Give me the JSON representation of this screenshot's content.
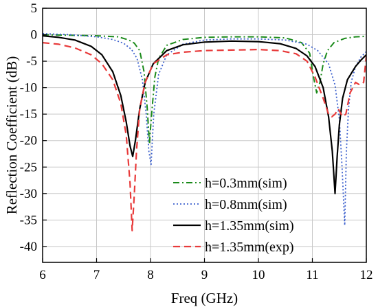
{
  "chart_data": {
    "type": "line",
    "title": "",
    "xlabel": "Freq (GHz)",
    "ylabel": "Reflection Coefficient (dB)",
    "xlim": [
      6,
      12
    ],
    "ylim": [
      -43,
      5
    ],
    "xticks": [
      6,
      7,
      8,
      9,
      10,
      11,
      12
    ],
    "yticks": [
      5,
      0,
      -5,
      -10,
      -15,
      -20,
      -25,
      -30,
      -35,
      -40
    ],
    "grid": true,
    "legend_position": "bottom-right",
    "series": [
      {
        "name": "h=0.3mm(sim)",
        "color": "#1a8a1a",
        "dash": "dashdot",
        "x": [
          6.0,
          6.5,
          7.0,
          7.4,
          7.6,
          7.7,
          7.8,
          7.88,
          7.94,
          7.98,
          8.02,
          8.08,
          8.15,
          8.3,
          8.6,
          9.0,
          9.5,
          10.0,
          10.5,
          10.8,
          10.95,
          11.02,
          11.08,
          11.14,
          11.2,
          11.28,
          11.4,
          11.6,
          11.8,
          12.0
        ],
        "y": [
          0.0,
          -0.1,
          -0.2,
          -0.4,
          -1.0,
          -1.6,
          -3.0,
          -7.0,
          -14.0,
          -20.5,
          -15.0,
          -8.0,
          -4.5,
          -2.0,
          -0.9,
          -0.5,
          -0.4,
          -0.4,
          -0.6,
          -1.5,
          -3.5,
          -8.0,
          -11.0,
          -9.0,
          -5.5,
          -3.0,
          -1.5,
          -0.7,
          -0.4,
          -0.3
        ]
      },
      {
        "name": "h=0.8mm(sim)",
        "color": "#3a5fcd",
        "dash": "dot",
        "x": [
          6.0,
          6.5,
          7.0,
          7.3,
          7.5,
          7.65,
          7.75,
          7.85,
          7.92,
          7.97,
          8.01,
          8.06,
          8.15,
          8.3,
          8.6,
          9.0,
          9.5,
          10.0,
          10.5,
          10.9,
          11.1,
          11.3,
          11.42,
          11.5,
          11.55,
          11.6,
          11.63,
          11.67,
          11.72,
          11.8,
          11.9,
          12.0
        ],
        "y": [
          0.2,
          0.0,
          -0.4,
          -0.9,
          -1.6,
          -2.8,
          -4.5,
          -8.5,
          -15.0,
          -22.0,
          -24.5,
          -15.0,
          -7.5,
          -3.8,
          -1.8,
          -1.0,
          -0.8,
          -0.8,
          -1.0,
          -1.8,
          -3.0,
          -5.5,
          -9.5,
          -16.0,
          -25.0,
          -36.0,
          -22.0,
          -14.0,
          -9.0,
          -6.0,
          -4.2,
          -3.2
        ]
      },
      {
        "name": "h=1.35mm(sim)",
        "color": "#000000",
        "dash": "solid",
        "x": [
          6.0,
          6.3,
          6.6,
          6.9,
          7.1,
          7.3,
          7.45,
          7.55,
          7.62,
          7.67,
          7.72,
          7.8,
          7.9,
          8.05,
          8.3,
          8.6,
          9.0,
          9.5,
          10.0,
          10.4,
          10.7,
          10.9,
          11.05,
          11.2,
          11.3,
          11.37,
          11.42,
          11.46,
          11.5,
          11.56,
          11.65,
          11.8,
          11.9,
          12.0
        ],
        "y": [
          -0.2,
          -0.5,
          -1.0,
          -2.2,
          -3.8,
          -7.0,
          -11.5,
          -16.5,
          -21.0,
          -23.0,
          -20.0,
          -14.0,
          -9.0,
          -5.5,
          -3.0,
          -1.9,
          -1.4,
          -1.2,
          -1.3,
          -1.7,
          -2.6,
          -4.0,
          -6.0,
          -10.0,
          -15.5,
          -22.0,
          -30.0,
          -23.0,
          -17.0,
          -12.0,
          -8.5,
          -6.0,
          -4.8,
          -3.8
        ]
      },
      {
        "name": "h=1.35mm(exp)",
        "color": "#e83a3a",
        "dash": "dash",
        "x": [
          6.0,
          6.3,
          6.6,
          6.9,
          7.1,
          7.3,
          7.45,
          7.55,
          7.62,
          7.66,
          7.7,
          7.74,
          7.8,
          7.9,
          8.05,
          8.3,
          8.6,
          9.0,
          9.5,
          10.0,
          10.4,
          10.7,
          10.9,
          11.05,
          11.2,
          11.3,
          11.36,
          11.42,
          11.48,
          11.56,
          11.62,
          11.7,
          11.8,
          11.88,
          11.95,
          12.0
        ],
        "y": [
          -1.5,
          -1.8,
          -2.5,
          -3.8,
          -5.5,
          -8.5,
          -13.0,
          -19.0,
          -28.0,
          -37.0,
          -30.0,
          -22.0,
          -14.0,
          -9.0,
          -5.5,
          -3.8,
          -3.3,
          -3.0,
          -2.9,
          -2.8,
          -3.0,
          -3.6,
          -5.0,
          -8.0,
          -12.0,
          -15.0,
          -15.5,
          -15.0,
          -14.0,
          -15.5,
          -15.0,
          -11.0,
          -9.0,
          -9.5,
          -9.0,
          -4.0
        ]
      }
    ]
  }
}
